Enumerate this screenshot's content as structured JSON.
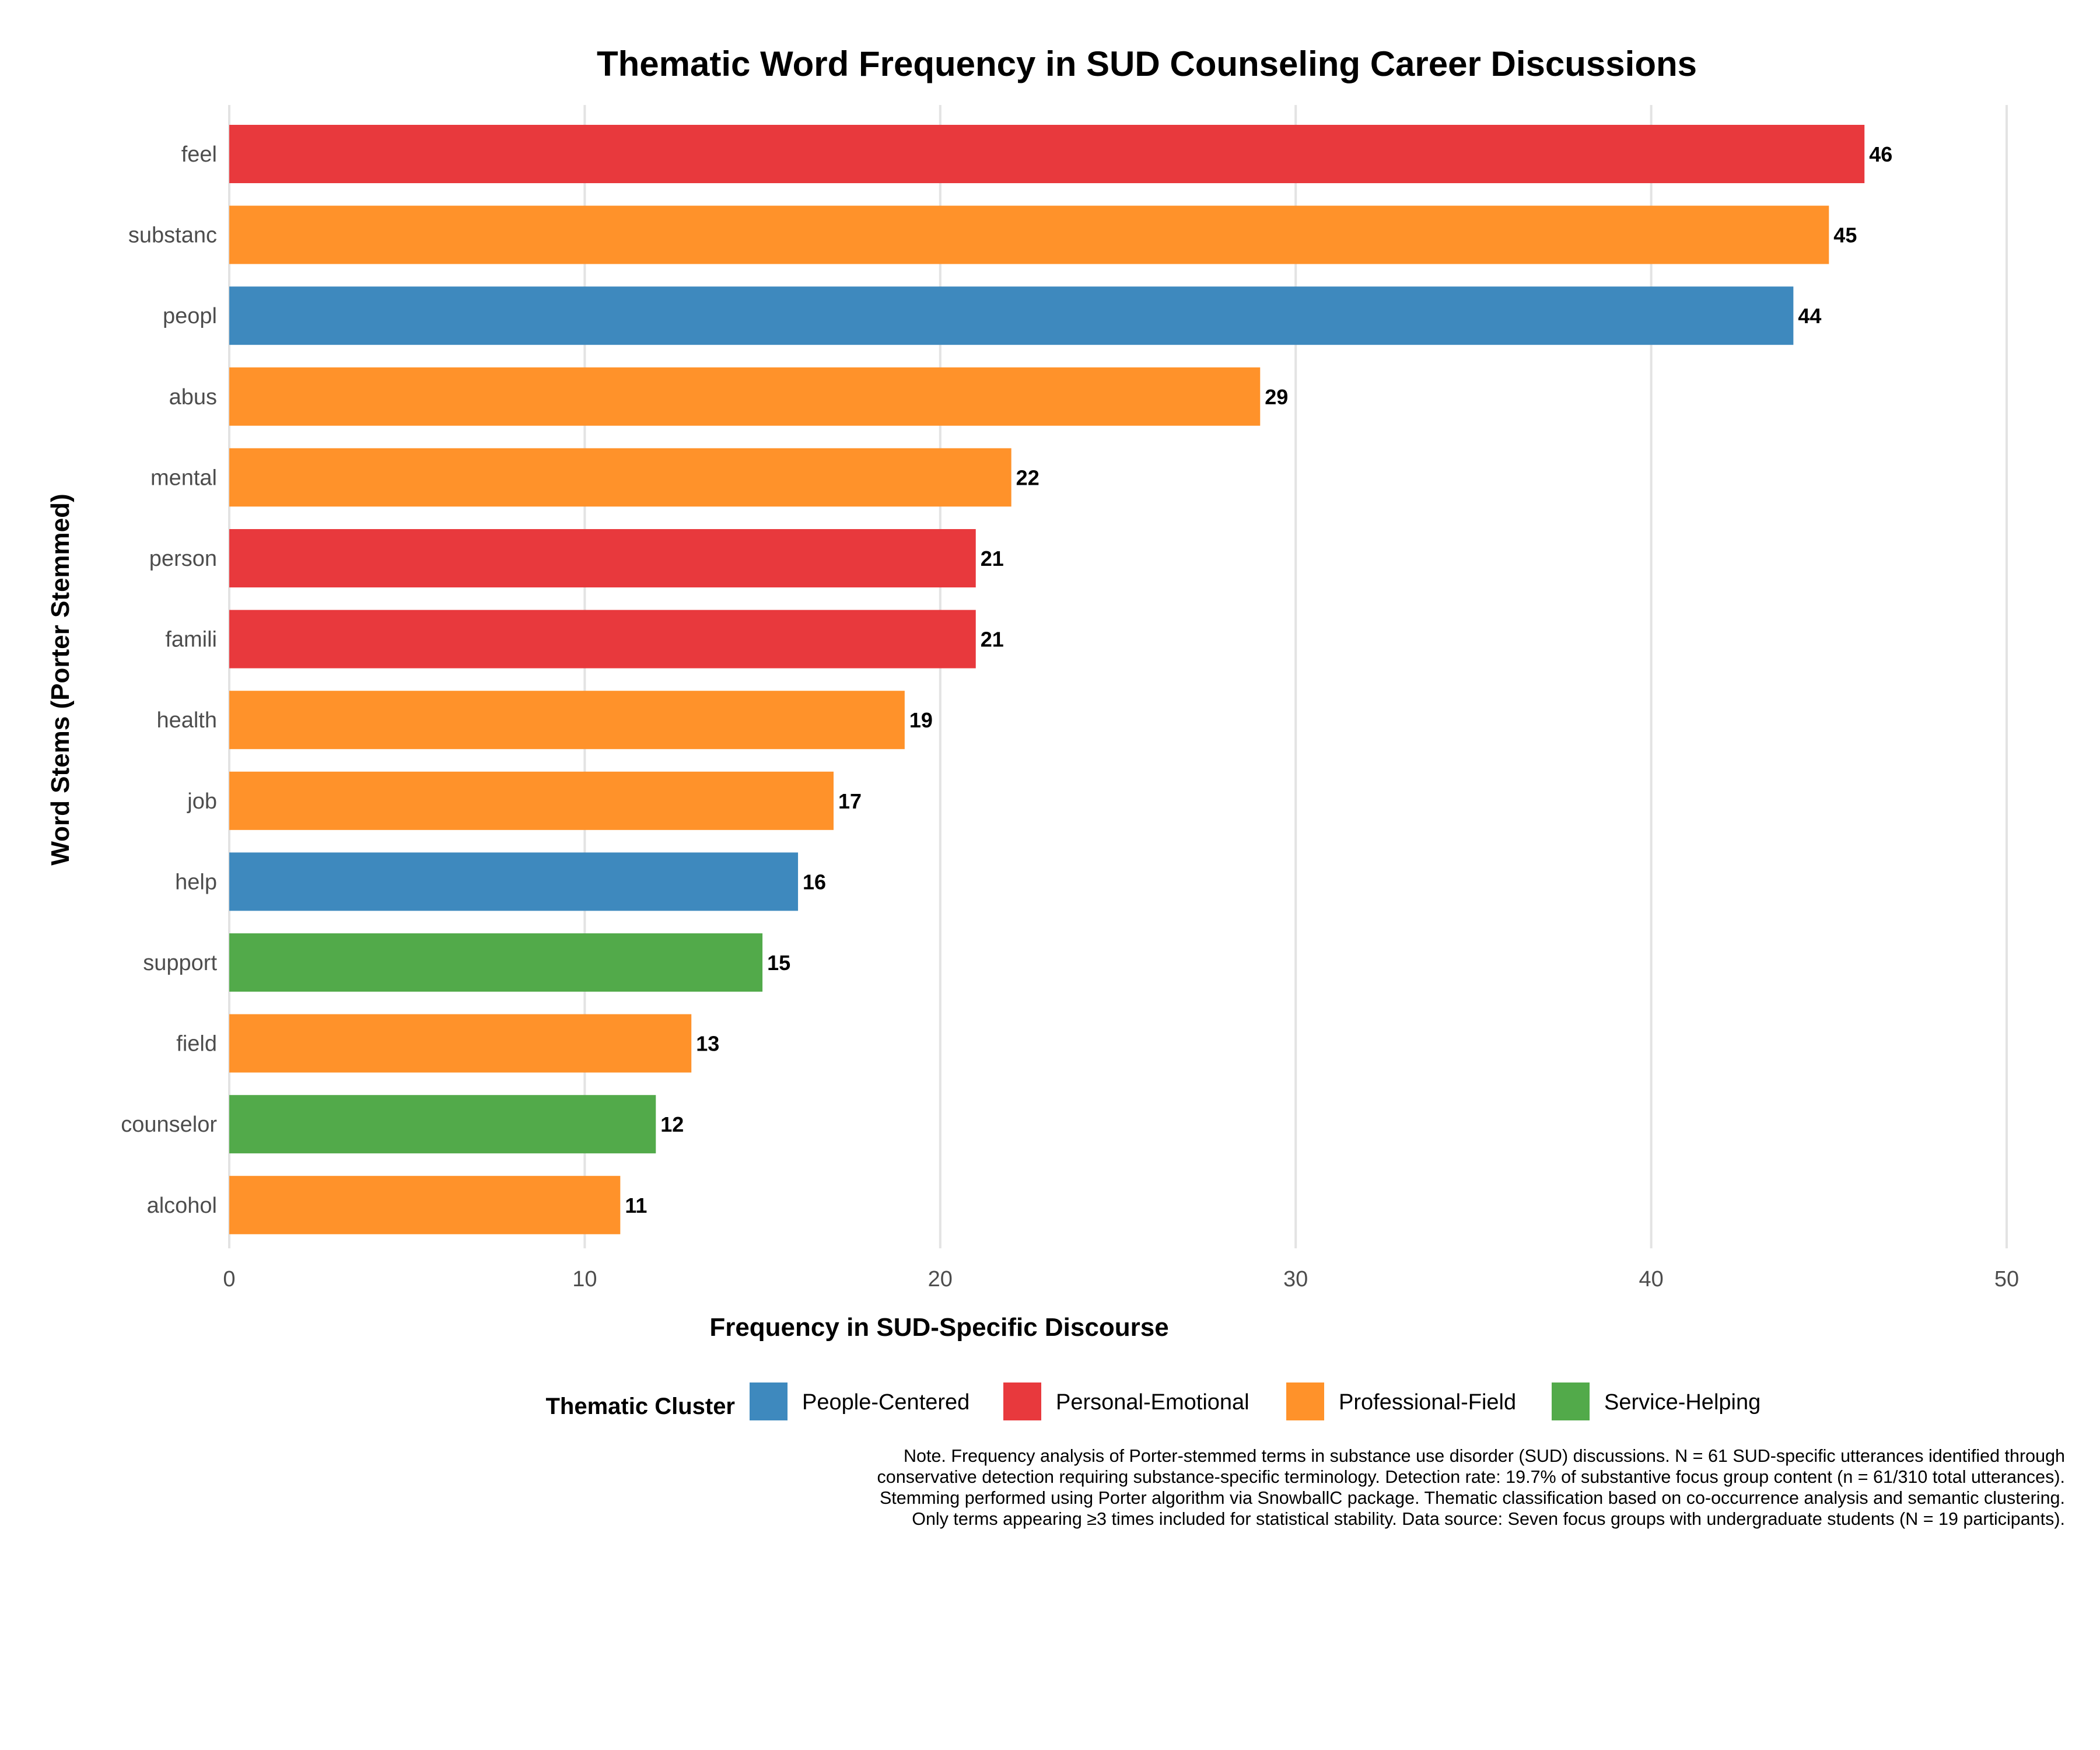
{
  "chart_data": {
    "type": "bar",
    "orientation": "horizontal",
    "title": "Thematic Word Frequency in SUD Counseling Career Discussions",
    "xlabel": "Frequency in SUD-Specific Discourse",
    "ylabel": "Word Stems (Porter Stemmed)",
    "xlim": [
      0,
      50
    ],
    "xticks": [
      0,
      10,
      20,
      30,
      40,
      50
    ],
    "grid": "vertical",
    "categories": [
      "feel",
      "substanc",
      "peopl",
      "abus",
      "mental",
      "person",
      "famili",
      "health",
      "job",
      "help",
      "support",
      "field",
      "counselor",
      "alcohol"
    ],
    "values": [
      46,
      45,
      44,
      29,
      22,
      21,
      21,
      19,
      17,
      16,
      15,
      13,
      12,
      11
    ],
    "clusters": [
      "Personal-Emotional",
      "Professional-Field",
      "People-Centered",
      "Professional-Field",
      "Professional-Field",
      "Personal-Emotional",
      "Personal-Emotional",
      "Professional-Field",
      "Professional-Field",
      "People-Centered",
      "Service-Helping",
      "Professional-Field",
      "Service-Helping",
      "Professional-Field"
    ],
    "legend": {
      "title": "Thematic Cluster",
      "placement": "bottom",
      "entries": [
        {
          "name": "People-Centered",
          "color": "#3E89BE"
        },
        {
          "name": "Personal-Emotional",
          "color": "#E8393D"
        },
        {
          "name": "Professional-Field",
          "color": "#FF922A"
        },
        {
          "name": "Service-Helping",
          "color": "#52AA4A"
        }
      ]
    },
    "note": "Note. Frequency analysis of Porter-stemmed terms in substance use disorder (SUD) discussions. N = 61 SUD-specific utterances identified through conservative detection requiring substance-specific terminology. Detection rate: 19.7% of substantive focus group content (n = 61/310 total utterances). Stemming performed using Porter algorithm via SnowballC package. Thematic classification based on co-occurrence analysis and semantic clustering. Only terms appearing ≥3 times included for statistical stability. Data source: Seven focus groups with undergraduate students (N = 19 participants)."
  }
}
